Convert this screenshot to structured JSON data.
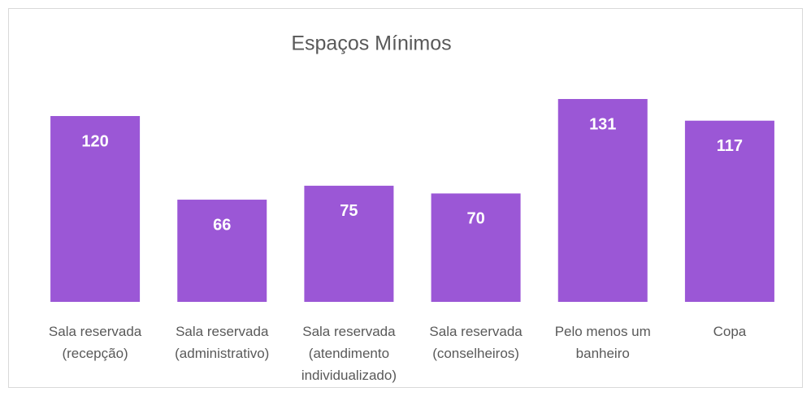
{
  "chart_data": {
    "type": "bar",
    "title": "Espaços Mínimos",
    "categories": [
      "Sala reservada (recepção)",
      "Sala reservada (administrativo)",
      "Sala reservada (atendimento individualizado)",
      "Sala reservada (conselheiros)",
      "Pelo menos um banheiro",
      "Copa"
    ],
    "values": [
      120,
      66,
      75,
      70,
      131,
      117
    ],
    "color": "#9b57d6"
  }
}
